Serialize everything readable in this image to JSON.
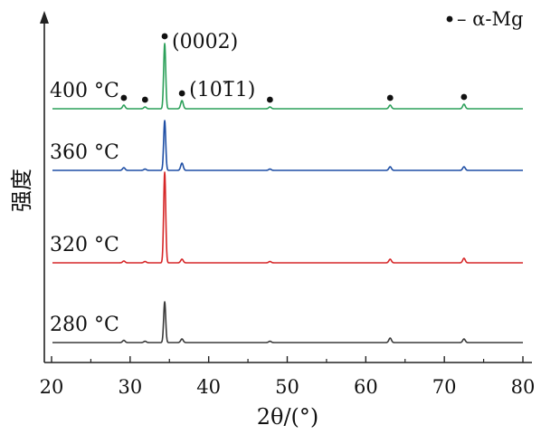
{
  "chart_data": {
    "type": "line",
    "title": "",
    "xlabel": "2θ/(°)",
    "ylabel": "强度",
    "xlim": [
      20,
      80
    ],
    "x_ticks": [
      20,
      30,
      40,
      50,
      60,
      70,
      80
    ],
    "y_ticks_shown": false,
    "grid": false,
    "legend": {
      "placement": "top-right",
      "marker": "•",
      "text": "– α-Mg"
    },
    "peak_labels": [
      {
        "text": "(0002)",
        "x": 34.4
      },
      {
        "text": "(1011)",
        "x": 36.6,
        "overbar": "1"
      }
    ],
    "marker_peaks": [
      29.2,
      31.9,
      34.4,
      36.6,
      47.8,
      63.1,
      72.5
    ],
    "series": [
      {
        "name": "280 °C",
        "color": "#3a3a3a",
        "baseline": 0,
        "peaks": [
          [
            29.2,
            2.5
          ],
          [
            31.9,
            1.5
          ],
          [
            34.4,
            45
          ],
          [
            36.6,
            4
          ],
          [
            47.8,
            1.5
          ],
          [
            63.1,
            5
          ],
          [
            72.5,
            4
          ]
        ]
      },
      {
        "name": "320 °C",
        "color": "#d62728",
        "baseline": 88,
        "peaks": [
          [
            29.2,
            2
          ],
          [
            31.9,
            1.5
          ],
          [
            34.4,
            100
          ],
          [
            36.6,
            4
          ],
          [
            47.8,
            1.5
          ],
          [
            63.1,
            4
          ],
          [
            72.5,
            5
          ]
        ]
      },
      {
        "name": "360 °C",
        "color": "#1f4fa5",
        "baseline": 190,
        "peaks": [
          [
            29.2,
            3
          ],
          [
            31.9,
            1.5
          ],
          [
            34.4,
            55
          ],
          [
            36.6,
            8
          ],
          [
            47.8,
            1.5
          ],
          [
            63.1,
            4
          ],
          [
            72.5,
            4
          ]
        ]
      },
      {
        "name": "400 °C",
        "color": "#2ca05a",
        "baseline": 258,
        "peaks": [
          [
            29.2,
            4
          ],
          [
            31.9,
            2
          ],
          [
            34.4,
            72
          ],
          [
            36.6,
            9
          ],
          [
            47.8,
            2
          ],
          [
            63.1,
            4
          ],
          [
            72.5,
            5
          ]
        ]
      }
    ],
    "curve_labels": [
      {
        "text": "400 °C",
        "series": 3
      },
      {
        "text": "360 °C",
        "series": 2
      },
      {
        "text": "320 °C",
        "series": 1
      },
      {
        "text": "280 °C",
        "series": 0
      }
    ]
  }
}
